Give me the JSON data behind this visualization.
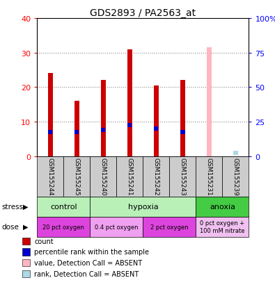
{
  "title": "GDS2893 / PA2563_at",
  "samples": [
    "GSM155244",
    "GSM155245",
    "GSM155240",
    "GSM155241",
    "GSM155242",
    "GSM155243",
    "GSM155231",
    "GSM155239"
  ],
  "count_values": [
    24,
    16,
    22,
    31,
    20.5,
    22,
    null,
    null
  ],
  "rank_values": [
    7,
    7,
    7.5,
    9,
    8,
    7,
    null,
    null
  ],
  "absent_value": [
    null,
    null,
    null,
    null,
    null,
    null,
    31.5,
    null
  ],
  "absent_rank": [
    null,
    null,
    null,
    null,
    null,
    null,
    null,
    1
  ],
  "ylim_left": [
    0,
    40
  ],
  "ylim_right": [
    0,
    100
  ],
  "yticks_left": [
    0,
    10,
    20,
    30,
    40
  ],
  "ytick_labels_right": [
    "0",
    "25",
    "50",
    "75",
    "100%"
  ],
  "stress_groups": [
    {
      "label": "control",
      "start": 0,
      "end": 2,
      "color": "#b8f0b8"
    },
    {
      "label": "hypoxia",
      "start": 2,
      "end": 6,
      "color": "#b8f0b8"
    },
    {
      "label": "anoxia",
      "start": 6,
      "end": 8,
      "color": "#44cc44"
    }
  ],
  "dose_groups": [
    {
      "label": "20 pct oxygen",
      "start": 0,
      "end": 2,
      "color": "#dd44dd"
    },
    {
      "label": "0.4 pct oxygen",
      "start": 2,
      "end": 4,
      "color": "#f0a0f0"
    },
    {
      "label": "2 pct oxygen",
      "start": 4,
      "end": 6,
      "color": "#dd44dd"
    },
    {
      "label": "0 pct oxygen +\n100 mM nitrate",
      "start": 6,
      "end": 8,
      "color": "#f0c0f0"
    }
  ],
  "bar_color_red": "#cc0000",
  "bar_color_blue": "#0000cc",
  "bar_color_pink": "#ffb6c1",
  "bar_color_lightblue": "#add8e6",
  "bar_width": 0.18,
  "bg_color": "#ffffff",
  "grid_color": "#888888",
  "sample_bg_color": "#cccccc",
  "legend_items": [
    {
      "color": "#cc0000",
      "label": "count"
    },
    {
      "color": "#0000cc",
      "label": "percentile rank within the sample"
    },
    {
      "color": "#ffb6c1",
      "label": "value, Detection Call = ABSENT"
    },
    {
      "color": "#add8e6",
      "label": "rank, Detection Call = ABSENT"
    }
  ]
}
